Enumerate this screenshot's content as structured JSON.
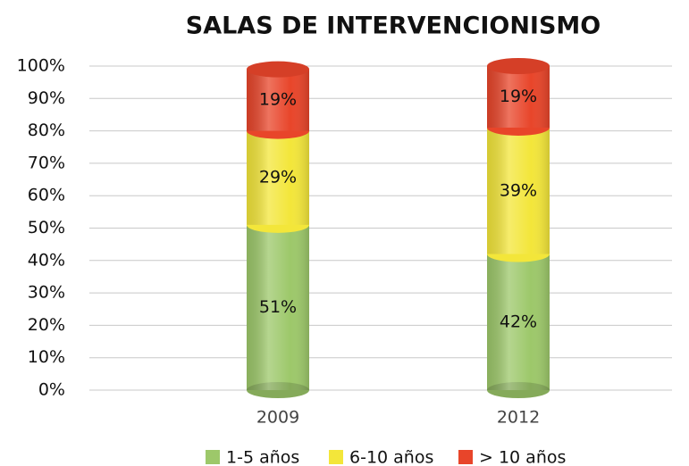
{
  "chart_data": {
    "type": "stacked_bar",
    "title": "SALAS DE INTERVENCIONISMO",
    "categories": [
      "2009",
      "2012"
    ],
    "series": [
      {
        "name": "1-5 años",
        "color": "#9dc86a",
        "values": [
          51,
          42
        ],
        "value_labels": [
          "51%",
          "42%"
        ]
      },
      {
        "name": "6-10 años",
        "color": "#f3e63a",
        "values": [
          29,
          39
        ],
        "value_labels": [
          "29%",
          "39%"
        ]
      },
      {
        "name": "> 10 años",
        "color": "#e8452a",
        "values": [
          19,
          19
        ],
        "value_labels": [
          "19%",
          "19%"
        ]
      }
    ],
    "ylim": [
      0,
      100
    ],
    "yticks": [
      {
        "value": 0,
        "label": "0%"
      },
      {
        "value": 10,
        "label": "10%"
      },
      {
        "value": 20,
        "label": "20%"
      },
      {
        "value": 30,
        "label": "30%"
      },
      {
        "value": 40,
        "label": "40%"
      },
      {
        "value": 50,
        "label": "50%"
      },
      {
        "value": 60,
        "label": "60%"
      },
      {
        "value": 70,
        "label": "70%"
      },
      {
        "value": 80,
        "label": "80%"
      },
      {
        "value": 90,
        "label": "90%"
      },
      {
        "value": 100,
        "label": "100%"
      }
    ],
    "grid": true,
    "legend": "bottom"
  }
}
